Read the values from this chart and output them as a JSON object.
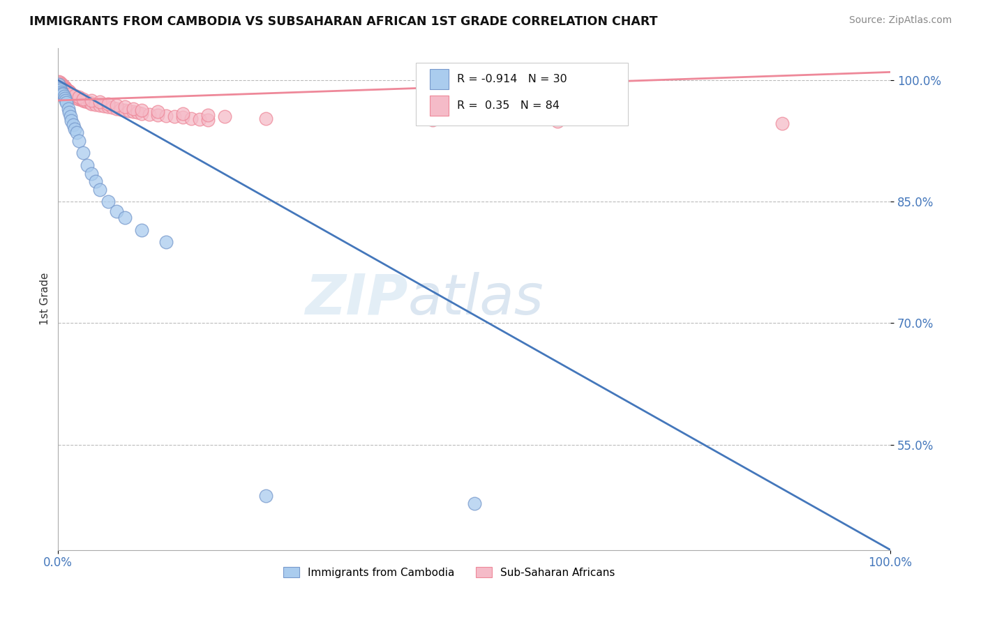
{
  "title": "IMMIGRANTS FROM CAMBODIA VS SUBSAHARAN AFRICAN 1ST GRADE CORRELATION CHART",
  "source": "Source: ZipAtlas.com",
  "ylabel": "1st Grade",
  "watermark_zip": "ZIP",
  "watermark_atlas": "atlas",
  "legend_blue_label": "Immigrants from Cambodia",
  "legend_pink_label": "Sub-Saharan Africans",
  "R_blue": -0.914,
  "N_blue": 30,
  "R_pink": 0.35,
  "N_pink": 84,
  "blue_color": "#aaccee",
  "blue_edge_color": "#7799cc",
  "blue_line_color": "#4477bb",
  "pink_color": "#f5bbc8",
  "pink_edge_color": "#ee8899",
  "pink_line_color": "#ee8899",
  "xlim": [
    0.0,
    1.0
  ],
  "ylim": [
    0.42,
    1.04
  ],
  "yticks": [
    0.55,
    0.7,
    0.85,
    1.0
  ],
  "ytick_labels": [
    "55.0%",
    "70.0%",
    "85.0%",
    "100.0%"
  ],
  "xticks": [
    0.0,
    1.0
  ],
  "xtick_labels": [
    "0.0%",
    "100.0%"
  ],
  "blue_line_x0": 0.0,
  "blue_line_y0": 1.0,
  "blue_line_x1": 1.0,
  "blue_line_y1": 0.42,
  "pink_line_x0": 0.0,
  "pink_line_y0": 0.975,
  "pink_line_x1": 1.0,
  "pink_line_y1": 1.01,
  "blue_x": [
    0.001,
    0.002,
    0.003,
    0.004,
    0.005,
    0.006,
    0.007,
    0.008,
    0.009,
    0.01,
    0.012,
    0.013,
    0.015,
    0.016,
    0.018,
    0.02,
    0.022,
    0.025,
    0.03,
    0.035,
    0.04,
    0.045,
    0.05,
    0.06,
    0.07,
    0.08,
    0.1,
    0.13,
    0.25,
    0.5
  ],
  "blue_y": [
    0.995,
    0.99,
    0.988,
    0.985,
    0.984,
    0.983,
    0.98,
    0.978,
    0.975,
    0.972,
    0.965,
    0.96,
    0.955,
    0.95,
    0.945,
    0.94,
    0.935,
    0.925,
    0.91,
    0.895,
    0.885,
    0.875,
    0.865,
    0.85,
    0.838,
    0.83,
    0.815,
    0.8,
    0.487,
    0.477
  ],
  "pink_x": [
    0.001,
    0.001,
    0.002,
    0.002,
    0.003,
    0.003,
    0.004,
    0.004,
    0.005,
    0.005,
    0.006,
    0.006,
    0.007,
    0.007,
    0.008,
    0.008,
    0.009,
    0.009,
    0.01,
    0.01,
    0.011,
    0.011,
    0.012,
    0.012,
    0.013,
    0.014,
    0.015,
    0.016,
    0.017,
    0.018,
    0.02,
    0.021,
    0.022,
    0.025,
    0.028,
    0.03,
    0.032,
    0.035,
    0.038,
    0.04,
    0.045,
    0.05,
    0.055,
    0.06,
    0.065,
    0.07,
    0.075,
    0.08,
    0.085,
    0.09,
    0.095,
    0.1,
    0.11,
    0.12,
    0.13,
    0.14,
    0.15,
    0.16,
    0.17,
    0.18,
    0.002,
    0.003,
    0.005,
    0.007,
    0.01,
    0.015,
    0.02,
    0.025,
    0.03,
    0.04,
    0.05,
    0.06,
    0.07,
    0.08,
    0.09,
    0.1,
    0.12,
    0.15,
    0.18,
    0.2,
    0.25,
    0.45,
    0.6,
    0.87
  ],
  "pink_y": [
    0.998,
    0.995,
    0.997,
    0.993,
    0.996,
    0.992,
    0.994,
    0.991,
    0.995,
    0.99,
    0.993,
    0.988,
    0.992,
    0.987,
    0.991,
    0.986,
    0.99,
    0.985,
    0.989,
    0.984,
    0.988,
    0.983,
    0.987,
    0.982,
    0.986,
    0.985,
    0.984,
    0.983,
    0.982,
    0.981,
    0.98,
    0.979,
    0.978,
    0.977,
    0.976,
    0.975,
    0.974,
    0.973,
    0.972,
    0.971,
    0.97,
    0.969,
    0.968,
    0.967,
    0.966,
    0.965,
    0.964,
    0.963,
    0.962,
    0.961,
    0.96,
    0.959,
    0.958,
    0.957,
    0.956,
    0.955,
    0.954,
    0.953,
    0.952,
    0.951,
    0.993,
    0.991,
    0.989,
    0.987,
    0.985,
    0.983,
    0.981,
    0.979,
    0.977,
    0.975,
    0.973,
    0.971,
    0.969,
    0.967,
    0.965,
    0.963,
    0.961,
    0.959,
    0.957,
    0.955,
    0.953,
    0.951,
    0.949,
    0.947
  ]
}
